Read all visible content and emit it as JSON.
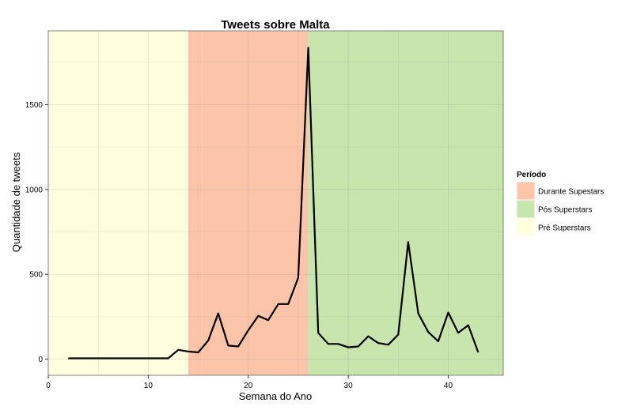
{
  "chart_data": {
    "type": "line",
    "title": "Tweets sobre Malta",
    "xlabel": "Semana do Ano",
    "ylabel": "Quantidade de tweets",
    "xlim": [
      0,
      45.5
    ],
    "ylim": [
      -95,
      1935
    ],
    "x_ticks": [
      0,
      10,
      20,
      30,
      40
    ],
    "y_ticks": [
      0,
      500,
      1000,
      1500
    ],
    "grid": true,
    "legend": {
      "title": "Período",
      "position": "right",
      "entries": [
        {
          "label": "Durante Supestars",
          "color": "#fcc5aa"
        },
        {
          "label": "Pós Superstars",
          "color": "#c8e5ae"
        },
        {
          "label": "Pré Superstars",
          "color": "#ffffdf"
        }
      ]
    },
    "periods": [
      {
        "name": "Pré Superstars",
        "x_start": 0,
        "x_end": 14,
        "color": "#ffffdf"
      },
      {
        "name": "Durante Supestars",
        "x_start": 14,
        "x_end": 26,
        "color": "#fcc5aa"
      },
      {
        "name": "Pós Superstars",
        "x_start": 26,
        "x_end": 45.5,
        "color": "#c8e5ae"
      }
    ],
    "series": [
      {
        "color": "#000000",
        "x": [
          2,
          3,
          4,
          5,
          6,
          7,
          8,
          9,
          10,
          11,
          12,
          13,
          14,
          15,
          16,
          17,
          18,
          19,
          20,
          21,
          22,
          23,
          24,
          25,
          26,
          27,
          28,
          29,
          30,
          31,
          32,
          33,
          34,
          35,
          36,
          37,
          38,
          39,
          40,
          41,
          42,
          43
        ],
        "y": [
          5,
          5,
          5,
          5,
          5,
          5,
          5,
          5,
          5,
          5,
          5,
          55,
          45,
          40,
          110,
          270,
          80,
          75,
          170,
          255,
          230,
          325,
          325,
          480,
          1835,
          155,
          90,
          90,
          70,
          75,
          135,
          95,
          85,
          145,
          690,
          270,
          160,
          105,
          275,
          155,
          200,
          40
        ]
      }
    ]
  }
}
